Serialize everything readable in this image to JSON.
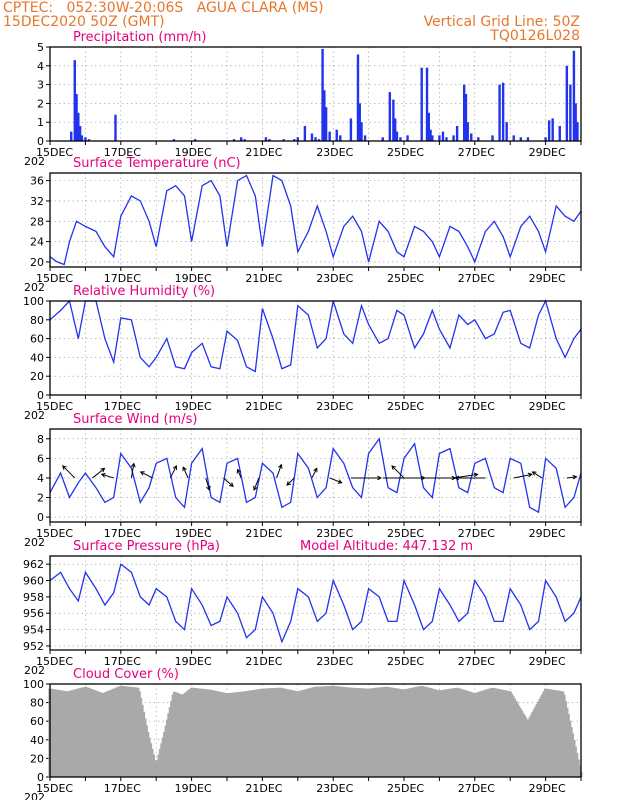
{
  "header": {
    "line1_left": "CPTEC:   052:30W-20:06S   AGUA CLARA (MS)",
    "line2_left": "15DEC2020 50Z (GMT)",
    "line2_right": "Vertical Grid Line: 50Z",
    "line3_right": "TQ0126L028"
  },
  "x_axis": {
    "start_day": 15,
    "end_day": 30,
    "tick_labels": [
      "15DEC",
      "17DEC",
      "19DEC",
      "21DEC",
      "23DEC",
      "25DEC",
      "27DEC",
      "29DEC"
    ],
    "year_fragment": "202"
  },
  "chart_data": [
    {
      "type": "bar",
      "title": "Precipitation (mm/h)",
      "ylim": [
        0,
        5
      ],
      "yticks": [
        0,
        1,
        2,
        3,
        4,
        5
      ],
      "color": "#2233ee",
      "x": [
        15.6,
        15.7,
        15.75,
        15.8,
        15.85,
        15.9,
        16.0,
        16.1,
        16.85,
        18.5,
        19.1,
        20.2,
        20.4,
        20.5,
        21.1,
        21.2,
        21.6,
        21.9,
        22.0,
        22.2,
        22.4,
        22.5,
        22.6,
        22.7,
        22.75,
        22.8,
        22.9,
        23.1,
        23.2,
        23.5,
        23.7,
        23.75,
        23.8,
        23.9,
        24.4,
        24.6,
        24.7,
        24.75,
        24.8,
        24.9,
        25.1,
        25.5,
        25.65,
        25.7,
        25.75,
        25.8,
        26.0,
        26.1,
        26.2,
        26.4,
        26.5,
        26.7,
        26.75,
        26.8,
        26.9,
        27.1,
        27.5,
        27.7,
        27.8,
        27.9,
        28.1,
        28.3,
        28.5,
        29.0,
        29.1,
        29.2,
        29.4,
        29.6,
        29.7,
        29.8,
        29.85,
        29.9
      ],
      "values": [
        0.5,
        4.3,
        2.5,
        1.5,
        0.8,
        0.3,
        0.2,
        0.1,
        1.4,
        0.1,
        0.1,
        0.1,
        0.2,
        0.1,
        0.2,
        0.1,
        0.1,
        0.1,
        0.2,
        0.8,
        0.4,
        0.2,
        0.1,
        4.9,
        2.7,
        1.8,
        0.5,
        0.6,
        0.3,
        1.2,
        4.6,
        2.0,
        1.0,
        0.3,
        0.2,
        2.6,
        2.2,
        1.2,
        0.5,
        0.2,
        0.3,
        3.9,
        3.9,
        1.5,
        0.6,
        0.3,
        0.3,
        0.5,
        0.2,
        0.3,
        0.8,
        3.0,
        2.5,
        1.0,
        0.4,
        0.2,
        0.3,
        3.0,
        3.1,
        1.0,
        0.3,
        0.2,
        0.2,
        0.2,
        1.1,
        1.2,
        0.8,
        4.0,
        3.0,
        4.8,
        2.0,
        1.0
      ]
    },
    {
      "type": "line",
      "title": "Surface Temperature (nC)",
      "ylim": [
        19,
        37.5
      ],
      "yticks": [
        20,
        24,
        28,
        32,
        36
      ],
      "color": "#2233ee",
      "x": [
        15.0,
        15.2,
        15.4,
        15.55,
        15.75,
        16.0,
        16.3,
        16.55,
        16.8,
        17.0,
        17.3,
        17.55,
        17.8,
        18.0,
        18.3,
        18.55,
        18.8,
        19.0,
        19.3,
        19.55,
        19.8,
        20.0,
        20.3,
        20.55,
        20.8,
        21.0,
        21.3,
        21.55,
        21.8,
        22.0,
        22.3,
        22.55,
        22.8,
        23.0,
        23.3,
        23.55,
        23.8,
        24.0,
        24.3,
        24.55,
        24.8,
        25.0,
        25.3,
        25.55,
        25.8,
        26.0,
        26.3,
        26.55,
        26.8,
        27.0,
        27.3,
        27.55,
        27.8,
        28.0,
        28.3,
        28.55,
        28.8,
        29.0,
        29.3,
        29.55,
        29.8,
        30.0
      ],
      "values": [
        21,
        20,
        19.5,
        24,
        28,
        27,
        26,
        23,
        21,
        29,
        33,
        32,
        28,
        23,
        34,
        35,
        33,
        24,
        35,
        36,
        33,
        23,
        36,
        37,
        33,
        23,
        37,
        36,
        31,
        22,
        26,
        31,
        26,
        21,
        27,
        29,
        26,
        20,
        28,
        26,
        22,
        21,
        27,
        26,
        24,
        21,
        27,
        26,
        23,
        20,
        26,
        28,
        25,
        21,
        27,
        29,
        26,
        22,
        31,
        29,
        28,
        30
      ]
    },
    {
      "type": "line",
      "title": "Relative Humidity (%)",
      "ylim": [
        0,
        100
      ],
      "yticks": [
        0,
        20,
        40,
        60,
        80,
        100
      ],
      "color": "#2233ee",
      "x": [
        15.0,
        15.3,
        15.55,
        15.8,
        16.0,
        16.3,
        16.55,
        16.8,
        17.0,
        17.3,
        17.55,
        17.8,
        18.0,
        18.3,
        18.55,
        18.8,
        19.0,
        19.3,
        19.55,
        19.8,
        20.0,
        20.3,
        20.55,
        20.8,
        21.0,
        21.3,
        21.55,
        21.8,
        22.0,
        22.3,
        22.55,
        22.8,
        23.0,
        23.3,
        23.55,
        23.8,
        24.0,
        24.3,
        24.55,
        24.8,
        25.0,
        25.3,
        25.55,
        25.8,
        26.0,
        26.3,
        26.55,
        26.8,
        27.0,
        27.3,
        27.55,
        27.8,
        28.0,
        28.3,
        28.55,
        28.8,
        29.0,
        29.3,
        29.55,
        29.8,
        30.0
      ],
      "values": [
        80,
        90,
        100,
        60,
        100,
        100,
        60,
        35,
        82,
        80,
        40,
        30,
        40,
        60,
        30,
        28,
        45,
        55,
        30,
        28,
        68,
        58,
        30,
        25,
        92,
        60,
        28,
        32,
        95,
        85,
        50,
        60,
        100,
        65,
        55,
        95,
        75,
        55,
        60,
        90,
        85,
        50,
        65,
        90,
        70,
        50,
        85,
        75,
        80,
        60,
        65,
        88,
        90,
        55,
        50,
        85,
        100,
        60,
        40,
        60,
        70
      ]
    },
    {
      "type": "line",
      "title": "Surface Wind (m/s)",
      "ylim": [
        -0.5,
        9
      ],
      "yticks": [
        0,
        2,
        4,
        6,
        8
      ],
      "color": "#2233ee",
      "x": [
        15.0,
        15.3,
        15.55,
        15.8,
        16.0,
        16.3,
        16.55,
        16.8,
        17.0,
        17.3,
        17.55,
        17.8,
        18.0,
        18.3,
        18.55,
        18.8,
        19.0,
        19.3,
        19.55,
        19.8,
        20.0,
        20.3,
        20.55,
        20.8,
        21.0,
        21.3,
        21.55,
        21.8,
        22.0,
        22.3,
        22.55,
        22.8,
        23.0,
        23.3,
        23.55,
        23.8,
        24.0,
        24.3,
        24.55,
        24.8,
        25.0,
        25.3,
        25.55,
        25.8,
        26.0,
        26.3,
        26.55,
        26.8,
        27.0,
        27.3,
        27.55,
        27.8,
        28.0,
        28.3,
        28.55,
        28.8,
        29.0,
        29.3,
        29.55,
        29.8,
        30.0
      ],
      "values": [
        2.5,
        4.5,
        2,
        3.5,
        4.5,
        3,
        1.5,
        2,
        6.5,
        5,
        1.5,
        3,
        5.5,
        6,
        2,
        1,
        5.5,
        7,
        2,
        1.5,
        5.5,
        6,
        1.5,
        2,
        5.5,
        4.5,
        1,
        1.5,
        6.5,
        5,
        2,
        3,
        7,
        5.5,
        3,
        2,
        6.5,
        8,
        3,
        2.5,
        6,
        7.5,
        3,
        2,
        6.5,
        7,
        3,
        2.5,
        5.5,
        6,
        3,
        2.5,
        6,
        5.5,
        1,
        0.5,
        6,
        5,
        1,
        2,
        4.5
      ],
      "arrows_x": [
        15.7,
        16.2,
        16.8,
        17.3,
        17.9,
        18.4,
        18.9,
        19.4,
        19.9,
        20.4,
        20.9,
        21.4,
        21.9,
        22.4,
        22.9,
        23.5,
        24.4,
        25.0,
        25.6,
        26.4,
        27.3,
        28.1,
        28.9,
        29.6
      ],
      "arrows_u": [
        -1,
        1,
        -1,
        0.2,
        -1,
        0.5,
        -0.4,
        0.3,
        0.8,
        -0.3,
        -0.4,
        0.4,
        -0.6,
        0.4,
        1,
        2.5,
        3.5,
        -1,
        2.5,
        2,
        -2.5,
        1.5,
        -0.8,
        0.8
      ],
      "arrows_v": [
        1,
        0.8,
        0.3,
        1.2,
        0.5,
        1,
        0.9,
        -1,
        -0.7,
        0.7,
        -1,
        1.1,
        -0.6,
        0.8,
        -0.4,
        0,
        0,
        1,
        0,
        0.3,
        0,
        0.3,
        0.5,
        0.1
      ]
    },
    {
      "type": "line",
      "title": "Surface Pressure (hPa)",
      "subtitle": "Model Altitude: 447.132  m",
      "ylim": [
        951.5,
        963
      ],
      "yticks": [
        952,
        954,
        956,
        958,
        960,
        962
      ],
      "color": "#2233ee",
      "x": [
        15.0,
        15.3,
        15.55,
        15.8,
        16.0,
        16.3,
        16.55,
        16.8,
        17.0,
        17.3,
        17.55,
        17.8,
        18.0,
        18.3,
        18.55,
        18.8,
        19.0,
        19.3,
        19.55,
        19.8,
        20.0,
        20.3,
        20.55,
        20.8,
        21.0,
        21.3,
        21.55,
        21.8,
        22.0,
        22.3,
        22.55,
        22.8,
        23.0,
        23.3,
        23.55,
        23.8,
        24.0,
        24.3,
        24.55,
        24.8,
        25.0,
        25.3,
        25.55,
        25.8,
        26.0,
        26.3,
        26.55,
        26.8,
        27.0,
        27.3,
        27.55,
        27.8,
        28.0,
        28.3,
        28.55,
        28.8,
        29.0,
        29.3,
        29.55,
        29.8,
        30.0
      ],
      "values": [
        960,
        961,
        959,
        957.5,
        961,
        959,
        957,
        958.5,
        962,
        961,
        958,
        957,
        959,
        958,
        955,
        954,
        959,
        957,
        954.5,
        955,
        958,
        956,
        953,
        954,
        958,
        956,
        952.5,
        955,
        959,
        958,
        955,
        956,
        960,
        957,
        954,
        955,
        959,
        958,
        955,
        955,
        960,
        957,
        954,
        955,
        959,
        957,
        955,
        956,
        960,
        958,
        955,
        955,
        959,
        957,
        954,
        955,
        960,
        958,
        955,
        956,
        958
      ]
    },
    {
      "type": "bar",
      "title": "Cloud Cover (%)",
      "ylim": [
        0,
        100
      ],
      "yticks": [
        0,
        20,
        40,
        60,
        80,
        100
      ],
      "color": "#a9a9a9",
      "x": [
        15.0,
        15.5,
        16.0,
        16.5,
        17.0,
        17.5,
        17.75,
        18.0,
        18.25,
        18.5,
        18.75,
        19.0,
        19.5,
        20.0,
        20.5,
        21.0,
        21.5,
        22.0,
        22.5,
        23.0,
        23.5,
        24.0,
        24.5,
        25.0,
        25.5,
        26.0,
        26.5,
        27.0,
        27.5,
        28.0,
        28.5,
        29.0,
        29.5,
        30.0
      ],
      "values": [
        95,
        92,
        97,
        90,
        98,
        96,
        50,
        12,
        50,
        92,
        88,
        96,
        94,
        90,
        92,
        95,
        96,
        92,
        97,
        98,
        96,
        95,
        97,
        94,
        98,
        93,
        96,
        90,
        96,
        92,
        60,
        95,
        92,
        5
      ]
    }
  ]
}
